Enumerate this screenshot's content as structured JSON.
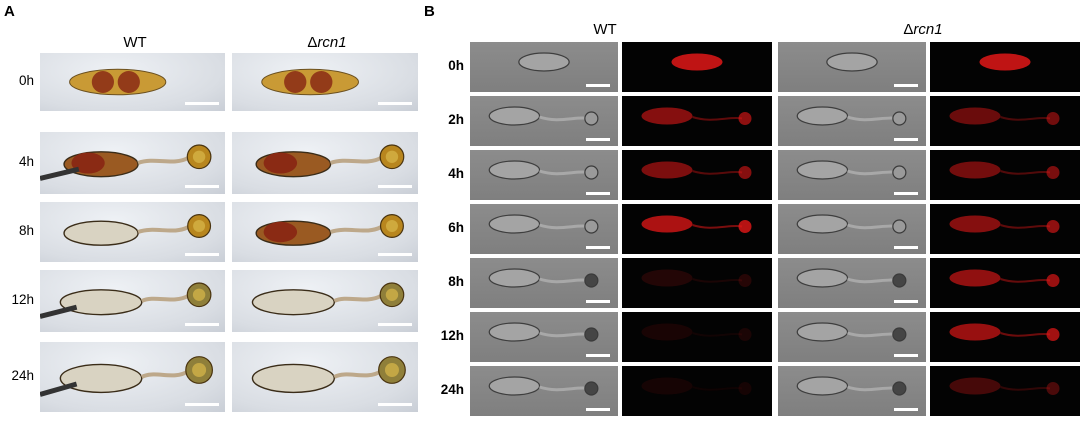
{
  "panels": {
    "A": {
      "letter": "A",
      "columns": [
        "WT",
        "Δrcn1"
      ],
      "rows": [
        "0h",
        "4h",
        "8h",
        "12h",
        "24h"
      ]
    },
    "B": {
      "letter": "B",
      "groups": [
        "WT",
        "Δrcn1"
      ],
      "rows": [
        "0h",
        "2h",
        "4h",
        "6h",
        "8h",
        "12h",
        "24h"
      ]
    }
  },
  "colors": {
    "fluorescence": "#e01818",
    "brightfield_cell": "#c99a35",
    "pigment": "#8a2a14",
    "dic_background": "#858585"
  }
}
